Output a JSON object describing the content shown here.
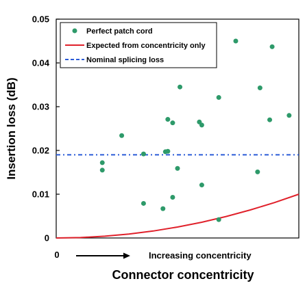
{
  "chart_data": {
    "type": "scatter",
    "xlabel": "Connector concentricity",
    "ylabel": "Insertion loss (dB)",
    "x_tick_labels": [
      "0"
    ],
    "x_direction_label": "Increasing concentricity",
    "ylim": [
      0,
      0.05
    ],
    "yticks": [
      "0",
      "0.01",
      "0.02",
      "0.03",
      "0.04",
      "0.05"
    ],
    "grid": false,
    "legend_position": "top-left",
    "series": [
      {
        "name": "Perfect patch cord",
        "kind": "points",
        "color": "#2e9a6a",
        "points": [
          {
            "x": 0.19,
            "y": 0.0172
          },
          {
            "x": 0.19,
            "y": 0.0155
          },
          {
            "x": 0.27,
            "y": 0.0234
          },
          {
            "x": 0.36,
            "y": 0.0192
          },
          {
            "x": 0.36,
            "y": 0.0079
          },
          {
            "x": 0.44,
            "y": 0.0067
          },
          {
            "x": 0.45,
            "y": 0.0197
          },
          {
            "x": 0.46,
            "y": 0.0198
          },
          {
            "x": 0.46,
            "y": 0.0271
          },
          {
            "x": 0.48,
            "y": 0.0263
          },
          {
            "x": 0.48,
            "y": 0.0093
          },
          {
            "x": 0.5,
            "y": 0.0159
          },
          {
            "x": 0.51,
            "y": 0.0345
          },
          {
            "x": 0.59,
            "y": 0.0265
          },
          {
            "x": 0.6,
            "y": 0.0258
          },
          {
            "x": 0.6,
            "y": 0.0121
          },
          {
            "x": 0.67,
            "y": 0.0321
          },
          {
            "x": 0.67,
            "y": 0.0042
          },
          {
            "x": 0.74,
            "y": 0.045
          },
          {
            "x": 0.83,
            "y": 0.0151
          },
          {
            "x": 0.84,
            "y": 0.0343
          },
          {
            "x": 0.88,
            "y": 0.027
          },
          {
            "x": 0.89,
            "y": 0.0437
          },
          {
            "x": 0.96,
            "y": 0.028
          }
        ]
      },
      {
        "name": "Expected from concentricity only",
        "kind": "line",
        "color": "#e0202a",
        "points": [
          {
            "x": 0.0,
            "y": 0.0
          },
          {
            "x": 0.1,
            "y": 0.0001
          },
          {
            "x": 0.2,
            "y": 0.0004
          },
          {
            "x": 0.3,
            "y": 0.0009
          },
          {
            "x": 0.4,
            "y": 0.0016
          },
          {
            "x": 0.5,
            "y": 0.0025
          },
          {
            "x": 0.6,
            "y": 0.0036
          },
          {
            "x": 0.7,
            "y": 0.0049
          },
          {
            "x": 0.8,
            "y": 0.0064
          },
          {
            "x": 0.9,
            "y": 0.0081
          },
          {
            "x": 1.0,
            "y": 0.01
          }
        ]
      },
      {
        "name": "Nominal splicing loss",
        "kind": "hline",
        "color": "#2a5bd7",
        "y": 0.019
      }
    ]
  }
}
